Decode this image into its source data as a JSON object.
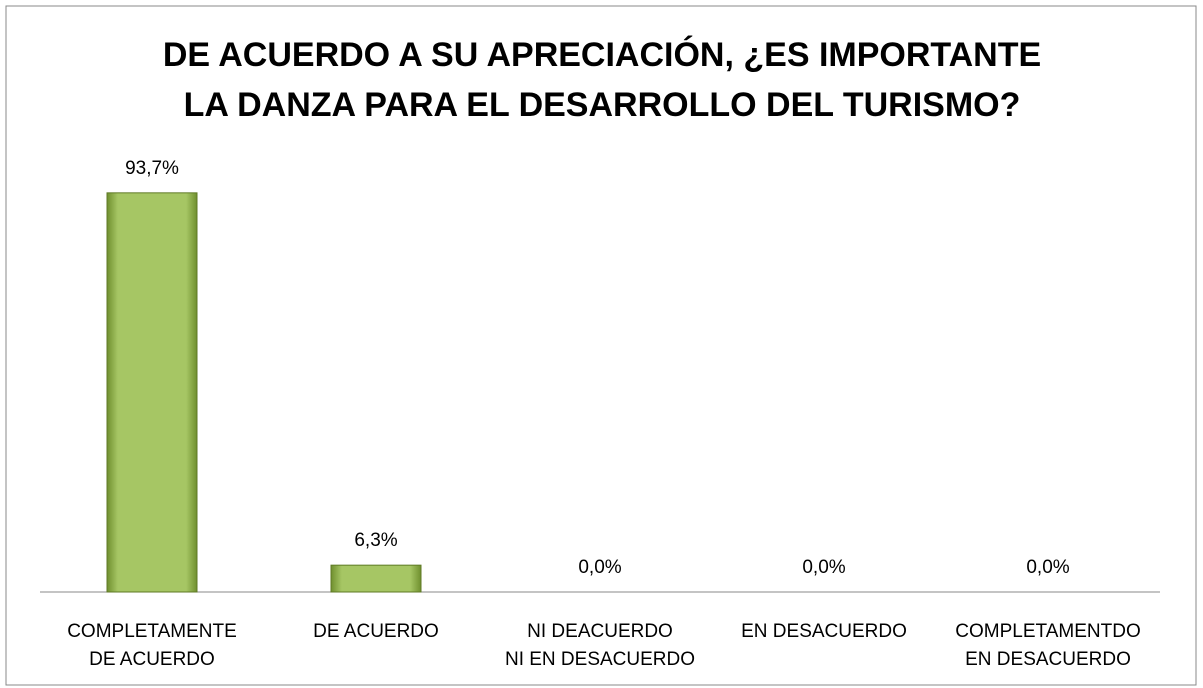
{
  "chart_data": {
    "type": "bar",
    "title": "DE ACUERDO A SU APRECIACIÓN, ¿ES IMPORTANTE\nLA DANZA PARA EL DESARROLLO DEL TURISMO?",
    "categories": [
      "COMPLETAMENTE\nDE ACUERDO",
      "DE ACUERDO",
      "NI DEACUERDO\nNI EN DESACUERDO",
      "EN DESACUERDO",
      "COMPLETAMENTDO\nEN DESACUERDO"
    ],
    "values": [
      93.7,
      6.3,
      0,
      0,
      0
    ],
    "value_labels": [
      "93,7%",
      "6,3%",
      "0,0%",
      "0,0%",
      "0,0%"
    ],
    "color": "#9bbb59"
  }
}
